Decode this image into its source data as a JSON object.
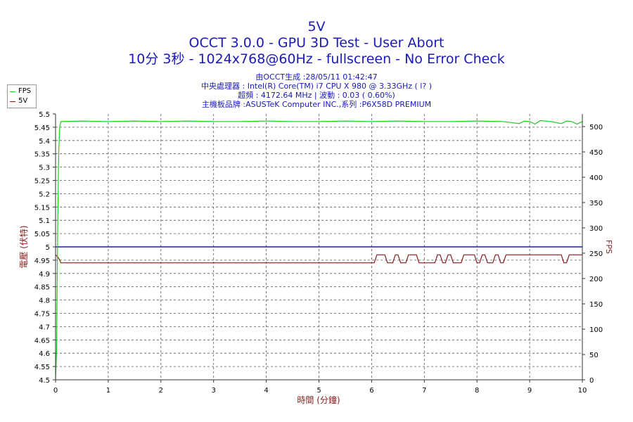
{
  "titles": {
    "line1": "5V",
    "line2": "OCCT 3.0.0 - GPU 3D Test - User Abort",
    "line3": "10分 3秒 - 1024x768@60Hz - fullscreen - No Error Check"
  },
  "info": {
    "line1": "由OCCT生成 :28/05/11 01:42:47",
    "line2": "中央處理器 : Intel(R) Core(TM) i7 CPU X 980 @ 3.33GHz (    l?  )",
    "line3": "超頻 : 4172.64 MHz | 波動 : 0.03 ( 0.60%)",
    "line4": "主機板品牌 :ASUSTeK Computer INC.,系列 :P6X58D PREMIUM"
  },
  "legend": [
    {
      "label": "FPS",
      "color": "#22cc22"
    },
    {
      "label": "5V",
      "color": "#8b1a1a"
    }
  ],
  "chart_data": {
    "type": "line",
    "xlabel": "時間 (分鐘)",
    "ylabel_left": "電壓 (伏特)",
    "ylabel_right": "FPS",
    "xlim": [
      0,
      10
    ],
    "ylim_left": [
      4.5,
      5.5
    ],
    "ylim_right": [
      0,
      525
    ],
    "x_ticks": [
      "0",
      "1",
      "2",
      "3",
      "4",
      "5",
      "6",
      "7",
      "8",
      "9",
      "10"
    ],
    "y_left_ticks": [
      "4.5",
      "4.55",
      "4.6",
      "4.65",
      "4.7",
      "4.75",
      "4.8",
      "4.85",
      "4.9",
      "4.95",
      "5",
      "5.05",
      "5.1",
      "5.15",
      "5.2",
      "5.25",
      "5.3",
      "5.35",
      "5.4",
      "5.45",
      "5.5"
    ],
    "y_right_ticks": [
      "0",
      "50",
      "100",
      "150",
      "200",
      "250",
      "300",
      "350",
      "400",
      "450",
      "500"
    ],
    "grid": true,
    "reference_line": {
      "y": 5.0,
      "color": "#1a1ab8"
    },
    "series": [
      {
        "name": "5V",
        "axis": "left",
        "color": "#8b1a1a",
        "points": [
          [
            0.0,
            4.97
          ],
          [
            0.05,
            4.96
          ],
          [
            0.08,
            4.95
          ],
          [
            0.1,
            4.94
          ],
          [
            6.0,
            4.94
          ],
          [
            6.05,
            4.94
          ],
          [
            6.1,
            4.97
          ],
          [
            6.25,
            4.97
          ],
          [
            6.3,
            4.94
          ],
          [
            6.4,
            4.94
          ],
          [
            6.45,
            4.97
          ],
          [
            6.5,
            4.97
          ],
          [
            6.55,
            4.94
          ],
          [
            6.65,
            4.94
          ],
          [
            6.7,
            4.97
          ],
          [
            6.85,
            4.97
          ],
          [
            6.9,
            4.94
          ],
          [
            7.2,
            4.94
          ],
          [
            7.25,
            4.97
          ],
          [
            7.3,
            4.97
          ],
          [
            7.35,
            4.94
          ],
          [
            7.4,
            4.94
          ],
          [
            7.45,
            4.97
          ],
          [
            7.5,
            4.97
          ],
          [
            7.55,
            4.94
          ],
          [
            7.7,
            4.94
          ],
          [
            7.75,
            4.97
          ],
          [
            7.95,
            4.97
          ],
          [
            8.0,
            4.94
          ],
          [
            8.05,
            4.94
          ],
          [
            8.1,
            4.97
          ],
          [
            8.15,
            4.97
          ],
          [
            8.2,
            4.94
          ],
          [
            8.3,
            4.94
          ],
          [
            8.35,
            4.97
          ],
          [
            8.4,
            4.97
          ],
          [
            8.45,
            4.94
          ],
          [
            8.5,
            4.94
          ],
          [
            8.55,
            4.97
          ],
          [
            9.6,
            4.97
          ],
          [
            9.65,
            4.94
          ],
          [
            9.7,
            4.94
          ],
          [
            9.75,
            4.97
          ],
          [
            10.0,
            4.97
          ]
        ]
      },
      {
        "name": "FPS",
        "axis": "right",
        "color": "#22cc22",
        "points": [
          [
            0.0,
            0
          ],
          [
            0.02,
            60
          ],
          [
            0.04,
            300
          ],
          [
            0.06,
            450
          ],
          [
            0.08,
            500
          ],
          [
            0.1,
            510
          ],
          [
            0.5,
            511
          ],
          [
            1.0,
            510
          ],
          [
            1.5,
            511
          ],
          [
            2.0,
            510
          ],
          [
            2.5,
            511
          ],
          [
            3.0,
            510
          ],
          [
            3.5,
            510
          ],
          [
            4.0,
            511
          ],
          [
            4.5,
            510
          ],
          [
            5.0,
            510
          ],
          [
            5.5,
            511
          ],
          [
            6.0,
            510
          ],
          [
            6.5,
            511
          ],
          [
            7.0,
            510
          ],
          [
            7.5,
            510
          ],
          [
            8.0,
            511
          ],
          [
            8.5,
            510
          ],
          [
            8.8,
            506
          ],
          [
            8.9,
            511
          ],
          [
            9.0,
            510
          ],
          [
            9.1,
            505
          ],
          [
            9.2,
            512
          ],
          [
            9.4,
            510
          ],
          [
            9.6,
            506
          ],
          [
            9.7,
            511
          ],
          [
            9.8,
            510
          ],
          [
            9.9,
            505
          ],
          [
            10.0,
            510
          ]
        ]
      }
    ]
  }
}
